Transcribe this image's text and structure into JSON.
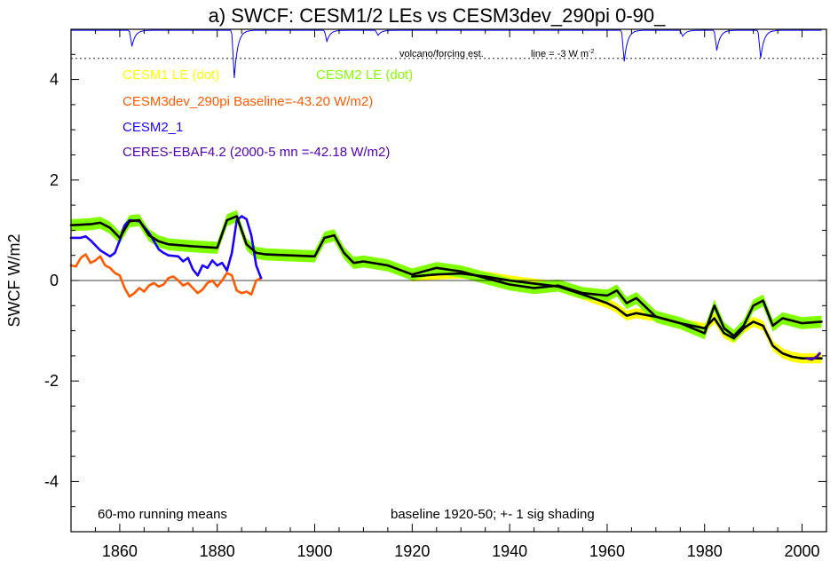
{
  "chart_data": {
    "type": "line",
    "title": "a) SWCF: CESM1/2 LEs vs CESM3dev_290pi 0-90_",
    "xlabel": "",
    "ylabel": "SWCF W/m2",
    "xlim": [
      1850,
      2005
    ],
    "ylim": [
      -5,
      5
    ],
    "x_ticks": [
      1860,
      1880,
      1900,
      1920,
      1940,
      1960,
      1980,
      2000
    ],
    "y_ticks": [
      -4,
      -2,
      0,
      2,
      4
    ],
    "grid": false,
    "zero_line": true,
    "legend": {
      "cesm1": "CESM1 LE (dot)",
      "cesm2": "CESM2 LE (dot)",
      "cesm3": "CESM3dev_290pi Baseline=-43.20 W/m2)",
      "cesm2_1": "CESM2_1",
      "ceres": "CERES-EBAF4.2 (2000-5 mn =-42.18 W/m2)"
    },
    "annotations": {
      "volcano": "volcano/forcing est.",
      "line_note": "line = -3 W m",
      "line_note_sup": "-2",
      "running_means": "60-mo running means",
      "baseline": "baseline 1920-50; +- 1 sig shading"
    },
    "volcano_ref_y": 4.42,
    "volcano_baseline_y": 4.98,
    "volcano_dips": [
      {
        "x": 1862.5,
        "depth": 0.32
      },
      {
        "x": 1883.5,
        "depth": 0.95
      },
      {
        "x": 1902.5,
        "depth": 0.22
      },
      {
        "x": 1913.0,
        "depth": 0.1
      },
      {
        "x": 1963.5,
        "depth": 0.62
      },
      {
        "x": 1975.5,
        "depth": 0.12
      },
      {
        "x": 1982.5,
        "depth": 0.4
      },
      {
        "x": 1991.5,
        "depth": 0.55
      }
    ],
    "colors": {
      "cesm1": "#ffff00",
      "cesm2": "#80ff00",
      "cesm3": "#ff5a00",
      "cesm2_1": "#1a00ff",
      "ceres": "#5000b4",
      "mean": "#000000",
      "volcano": "#0000ff"
    },
    "series": [
      {
        "name": "CESM1 LE (dot)",
        "x": [
          1920,
          1925,
          1930,
          1935,
          1940,
          1945,
          1950,
          1955,
          1960,
          1962,
          1964,
          1966,
          1970,
          1975,
          1980,
          1982,
          1984,
          1986,
          1988,
          1990,
          1992,
          1994,
          1996,
          1998,
          2000,
          2004
        ],
        "y": [
          0.08,
          0.12,
          0.14,
          0.08,
          0.0,
          -0.06,
          -0.12,
          -0.28,
          -0.45,
          -0.55,
          -0.7,
          -0.65,
          -0.72,
          -0.85,
          -0.95,
          -0.75,
          -1.05,
          -1.15,
          -0.95,
          -0.82,
          -0.9,
          -1.3,
          -1.45,
          -1.52,
          -1.55,
          -1.55
        ],
        "sigma": 0.1
      },
      {
        "name": "CESM2 LE (dot)",
        "x": [
          1850,
          1854,
          1856,
          1858,
          1860,
          1862,
          1864,
          1866,
          1868,
          1870,
          1875,
          1880,
          1882,
          1884,
          1886,
          1888,
          1890,
          1895,
          1900,
          1902,
          1904,
          1906,
          1908,
          1910,
          1915,
          1920,
          1925,
          1930,
          1935,
          1940,
          1945,
          1950,
          1955,
          1960,
          1962,
          1964,
          1966,
          1970,
          1975,
          1980,
          1982,
          1984,
          1986,
          1988,
          1990,
          1992,
          1994,
          1996,
          2000,
          2004
        ],
        "y": [
          1.1,
          1.12,
          1.15,
          1.05,
          0.85,
          1.18,
          1.2,
          0.9,
          0.78,
          0.72,
          0.68,
          0.65,
          1.2,
          1.28,
          0.72,
          0.55,
          0.52,
          0.5,
          0.48,
          0.85,
          0.9,
          0.55,
          0.35,
          0.38,
          0.3,
          0.12,
          0.25,
          0.18,
          0.05,
          -0.08,
          -0.15,
          -0.1,
          -0.25,
          -0.3,
          -0.2,
          -0.45,
          -0.35,
          -0.72,
          -0.85,
          -1.05,
          -0.5,
          -0.95,
          -1.1,
          -0.9,
          -0.5,
          -0.4,
          -0.9,
          -0.75,
          -0.85,
          -0.82
        ],
        "sigma": 0.12
      },
      {
        "name": "CESM3dev_290pi Baseline=-43.20 W/m2)",
        "x": [
          1850,
          1851,
          1852,
          1853,
          1854,
          1855,
          1856,
          1857,
          1858,
          1859,
          1860,
          1861,
          1862,
          1863,
          1864,
          1865,
          1866,
          1867,
          1868,
          1869,
          1870,
          1871,
          1872,
          1873,
          1874,
          1875,
          1876,
          1877,
          1878,
          1879,
          1880,
          1881,
          1882,
          1883,
          1884,
          1885,
          1886,
          1887,
          1888,
          1889
        ],
        "y": [
          0.3,
          0.28,
          0.45,
          0.52,
          0.35,
          0.4,
          0.48,
          0.3,
          0.25,
          0.15,
          0.1,
          -0.15,
          -0.32,
          -0.25,
          -0.15,
          -0.22,
          -0.1,
          -0.05,
          -0.12,
          -0.08,
          0.05,
          0.08,
          0.0,
          -0.1,
          -0.05,
          -0.15,
          -0.25,
          -0.18,
          -0.05,
          0.0,
          -0.12,
          0.0,
          0.15,
          0.1,
          -0.2,
          -0.25,
          -0.22,
          -0.28,
          0.0,
          0.05
        ]
      },
      {
        "name": "CESM2_1",
        "x": [
          1850,
          1852,
          1853,
          1854,
          1856,
          1858,
          1859,
          1860,
          1861,
          1862,
          1864,
          1866,
          1868,
          1869,
          1870,
          1872,
          1873,
          1874,
          1875,
          1876,
          1877,
          1878,
          1879,
          1880,
          1881,
          1882,
          1883,
          1884,
          1885,
          1886,
          1887,
          1888,
          1889
        ],
        "y": [
          0.85,
          0.85,
          0.88,
          0.8,
          0.6,
          0.48,
          0.55,
          0.8,
          1.1,
          1.2,
          1.18,
          0.95,
          0.62,
          0.55,
          0.5,
          0.48,
          0.38,
          0.45,
          0.22,
          0.1,
          0.3,
          0.25,
          0.4,
          0.3,
          0.35,
          0.2,
          0.55,
          1.2,
          1.28,
          1.22,
          0.9,
          0.3,
          0.05
        ]
      },
      {
        "name": "CERES-EBAF4.2 (2000-5 mn =-42.18 W/m2)",
        "x": [
          2001,
          2002,
          2003,
          2003.6
        ],
        "y": [
          -1.55,
          -1.57,
          -1.52,
          -1.45
        ]
      },
      {
        "name": "",
        "x": [
          1850,
          1854,
          1856,
          1858,
          1860,
          1862,
          1864,
          1866,
          1868,
          1870,
          1875,
          1880,
          1882,
          1884,
          1886,
          1888,
          1890,
          1895,
          1900,
          1902,
          1904,
          1906,
          1908,
          1910,
          1915,
          1920,
          1925,
          1930,
          1935,
          1940,
          1945,
          1950,
          1955,
          1960,
          1962,
          1964,
          1966,
          1970,
          1975,
          1980,
          1982,
          1984,
          1986,
          1988,
          1990,
          1992,
          1994,
          1996,
          2000,
          2004
        ],
        "y": [
          1.1,
          1.12,
          1.15,
          1.05,
          0.85,
          1.18,
          1.2,
          0.9,
          0.78,
          0.72,
          0.68,
          0.65,
          1.2,
          1.28,
          0.72,
          0.55,
          0.52,
          0.5,
          0.48,
          0.85,
          0.9,
          0.55,
          0.35,
          0.38,
          0.3,
          0.12,
          0.25,
          0.18,
          0.05,
          -0.08,
          -0.15,
          -0.1,
          -0.25,
          -0.3,
          -0.2,
          -0.45,
          -0.35,
          -0.72,
          -0.85,
          -1.05,
          -0.5,
          -0.95,
          -1.1,
          -0.9,
          -0.5,
          -0.4,
          -0.9,
          -0.75,
          -0.85,
          -0.82
        ]
      },
      {
        "name": "",
        "x": [
          1920,
          1925,
          1930,
          1935,
          1940,
          1945,
          1950,
          1955,
          1960,
          1962,
          1964,
          1966,
          1970,
          1975,
          1980,
          1982,
          1984,
          1986,
          1988,
          1990,
          1992,
          1994,
          1996,
          1998,
          2000,
          2004
        ],
        "y": [
          0.08,
          0.12,
          0.14,
          0.08,
          0.0,
          -0.06,
          -0.12,
          -0.28,
          -0.45,
          -0.55,
          -0.7,
          -0.65,
          -0.72,
          -0.85,
          -0.95,
          -0.75,
          -1.05,
          -1.15,
          -0.95,
          -0.82,
          -0.9,
          -1.3,
          -1.45,
          -1.52,
          -1.55,
          -1.55
        ]
      }
    ]
  }
}
